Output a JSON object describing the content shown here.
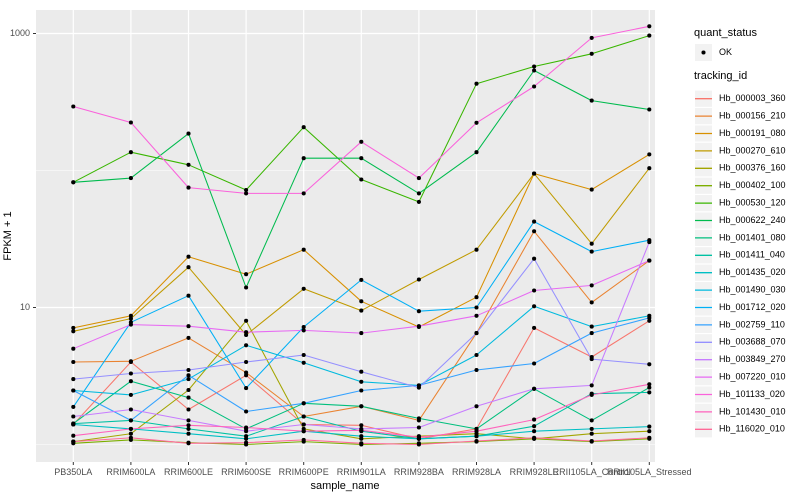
{
  "figure": {
    "background": "#FFFFFF",
    "panel_background": "#EBEBEB",
    "grid_color": "#FFFFFF",
    "tick_color": "#333333",
    "tick_label_color": "#4D4D4D",
    "text_color": "#000000"
  },
  "axes": {
    "x_title": "sample_name",
    "y_title": "FPKM + 1",
    "y_tick_labels": [
      "1000",
      "10"
    ],
    "y_tick_values": [
      1000,
      10
    ],
    "y_minor_values": [
      100,
      1
    ]
  },
  "legend": {
    "position": "right",
    "key_background": "#F2F2F2",
    "quant_status_title": "quant_status",
    "quant_status_items": [
      {
        "label": "OK",
        "symbol": "black-point"
      }
    ],
    "tracking_id_title": "tracking_id"
  },
  "chart_data": {
    "type": "line",
    "xlabel": "sample_name",
    "ylabel": "FPKM + 1",
    "y_scale": "log10",
    "ylim": [
      0.74,
      1472
    ],
    "grid": "on",
    "point_marker_color": "#000000",
    "categories": [
      "PB350LA",
      "RRIM600LA",
      "RRIM600LE",
      "RRIM600SE",
      "RRIM600PE",
      "RRIM901LA",
      "RRIM928BA",
      "RRIM928LA",
      "RRIM928LE",
      "RRII105LA_Control",
      "RRII105LA_Stressed"
    ],
    "series": [
      {
        "name": "Hb_000003_360",
        "color": "#F8766D",
        "values": [
          1.4,
          4.0,
          1.8,
          3.2,
          1.4,
          1.38,
          1.1,
          1.3,
          7.1,
          4.35,
          8.0
        ]
      },
      {
        "name": "Hb_000156_210",
        "color": "#EA8331",
        "values": [
          4.0,
          4.05,
          6.0,
          3.35,
          1.6,
          1.9,
          1.5,
          6.5,
          36,
          10.9,
          22
        ]
      },
      {
        "name": "Hb_000191_080",
        "color": "#D89000",
        "values": [
          7.1,
          8.7,
          23.5,
          17.5,
          26.4,
          11.1,
          7.2,
          11.9,
          95,
          72.5,
          131
        ]
      },
      {
        "name": "Hb_000270_610",
        "color": "#C09B00",
        "values": [
          6.7,
          8.3,
          19.7,
          6.3,
          13.7,
          9.5,
          16,
          26.4,
          95,
          29.2,
          104
        ]
      },
      {
        "name": "Hb_000376_160",
        "color": "#A3A500",
        "values": [
          1.05,
          1.2,
          2.5,
          8.0,
          1.3,
          1.1,
          1.15,
          1.2,
          1.1,
          1.2,
          1.25
        ]
      },
      {
        "name": "Hb_000402_100",
        "color": "#7CAE00",
        "values": [
          1.02,
          1.08,
          1.03,
          1.0,
          1.05,
          1.0,
          1.02,
          1.05,
          1.1,
          1.05,
          1.1
        ]
      },
      {
        "name": "Hb_000530_120",
        "color": "#39B600",
        "values": [
          82,
          136,
          110,
          72,
          207,
          86,
          59,
          430,
          574,
          711,
          966
        ]
      },
      {
        "name": "Hb_000622_240",
        "color": "#00BB4E",
        "values": [
          82,
          88,
          186,
          14,
          123,
          123,
          68,
          136,
          537,
          324,
          279
        ]
      },
      {
        "name": "Hb_001401_080",
        "color": "#00BF7D",
        "values": [
          1.42,
          2.9,
          2.2,
          1.3,
          2.0,
          1.9,
          1.55,
          1.3,
          2.55,
          1.5,
          2.6
        ]
      },
      {
        "name": "Hb_001411_040",
        "color": "#00C1A3",
        "values": [
          1.42,
          1.5,
          1.3,
          1.15,
          1.6,
          1.25,
          1.1,
          1.15,
          1.36,
          2.35,
          2.4
        ]
      },
      {
        "name": "Hb_001435_020",
        "color": "#00BFC4",
        "values": [
          1.4,
          1.3,
          1.2,
          1.1,
          1.25,
          1.15,
          1.1,
          1.15,
          1.25,
          1.3,
          1.35
        ]
      },
      {
        "name": "Hb_001490_030",
        "color": "#00BADE",
        "values": [
          2.48,
          2.3,
          3.0,
          5.3,
          3.95,
          2.87,
          2.7,
          4.5,
          10.2,
          7.25,
          8.7
        ]
      },
      {
        "name": "Hb_001712_020",
        "color": "#00B0F6",
        "values": [
          1.88,
          7.8,
          12.2,
          2.58,
          7.2,
          15.9,
          9.4,
          10,
          42.4,
          25.6,
          31
        ]
      },
      {
        "name": "Hb_002759_110",
        "color": "#35A2FF",
        "values": [
          2.48,
          1.5,
          3.2,
          1.74,
          2.0,
          2.48,
          2.7,
          3.5,
          3.9,
          6.5,
          8.4
        ]
      },
      {
        "name": "Hb_003688_070",
        "color": "#9590FF",
        "values": [
          3.0,
          3.3,
          3.5,
          4.0,
          4.5,
          3.4,
          2.6,
          6.5,
          22.7,
          4.2,
          3.85
        ]
      },
      {
        "name": "Hb_003849_270",
        "color": "#C77CFF",
        "values": [
          1.6,
          1.8,
          1.5,
          1.25,
          1.4,
          1.3,
          1.33,
          1.9,
          2.55,
          2.7,
          30
        ]
      },
      {
        "name": "Hb_007220_010",
        "color": "#E76BF3",
        "values": [
          5.0,
          7.5,
          7.3,
          6.6,
          6.8,
          6.5,
          7.3,
          8.7,
          13.3,
          14.5,
          22
        ]
      },
      {
        "name": "Hb_101133_020",
        "color": "#FA62DB",
        "values": [
          293,
          224,
          75,
          68,
          68,
          162,
          88,
          223,
          410,
          929,
          1128
        ]
      },
      {
        "name": "Hb_101430_010",
        "color": "#FF62BC",
        "values": [
          1.16,
          1.3,
          1.38,
          1.33,
          1.25,
          1.27,
          1.13,
          1.25,
          1.52,
          2.3,
          2.75
        ]
      },
      {
        "name": "Hb_116020_010",
        "color": "#FF6A98",
        "values": [
          1.05,
          1.12,
          1.02,
          1.03,
          1.08,
          1.02,
          1.0,
          1.06,
          1.12,
          1.06,
          1.12
        ]
      }
    ]
  }
}
